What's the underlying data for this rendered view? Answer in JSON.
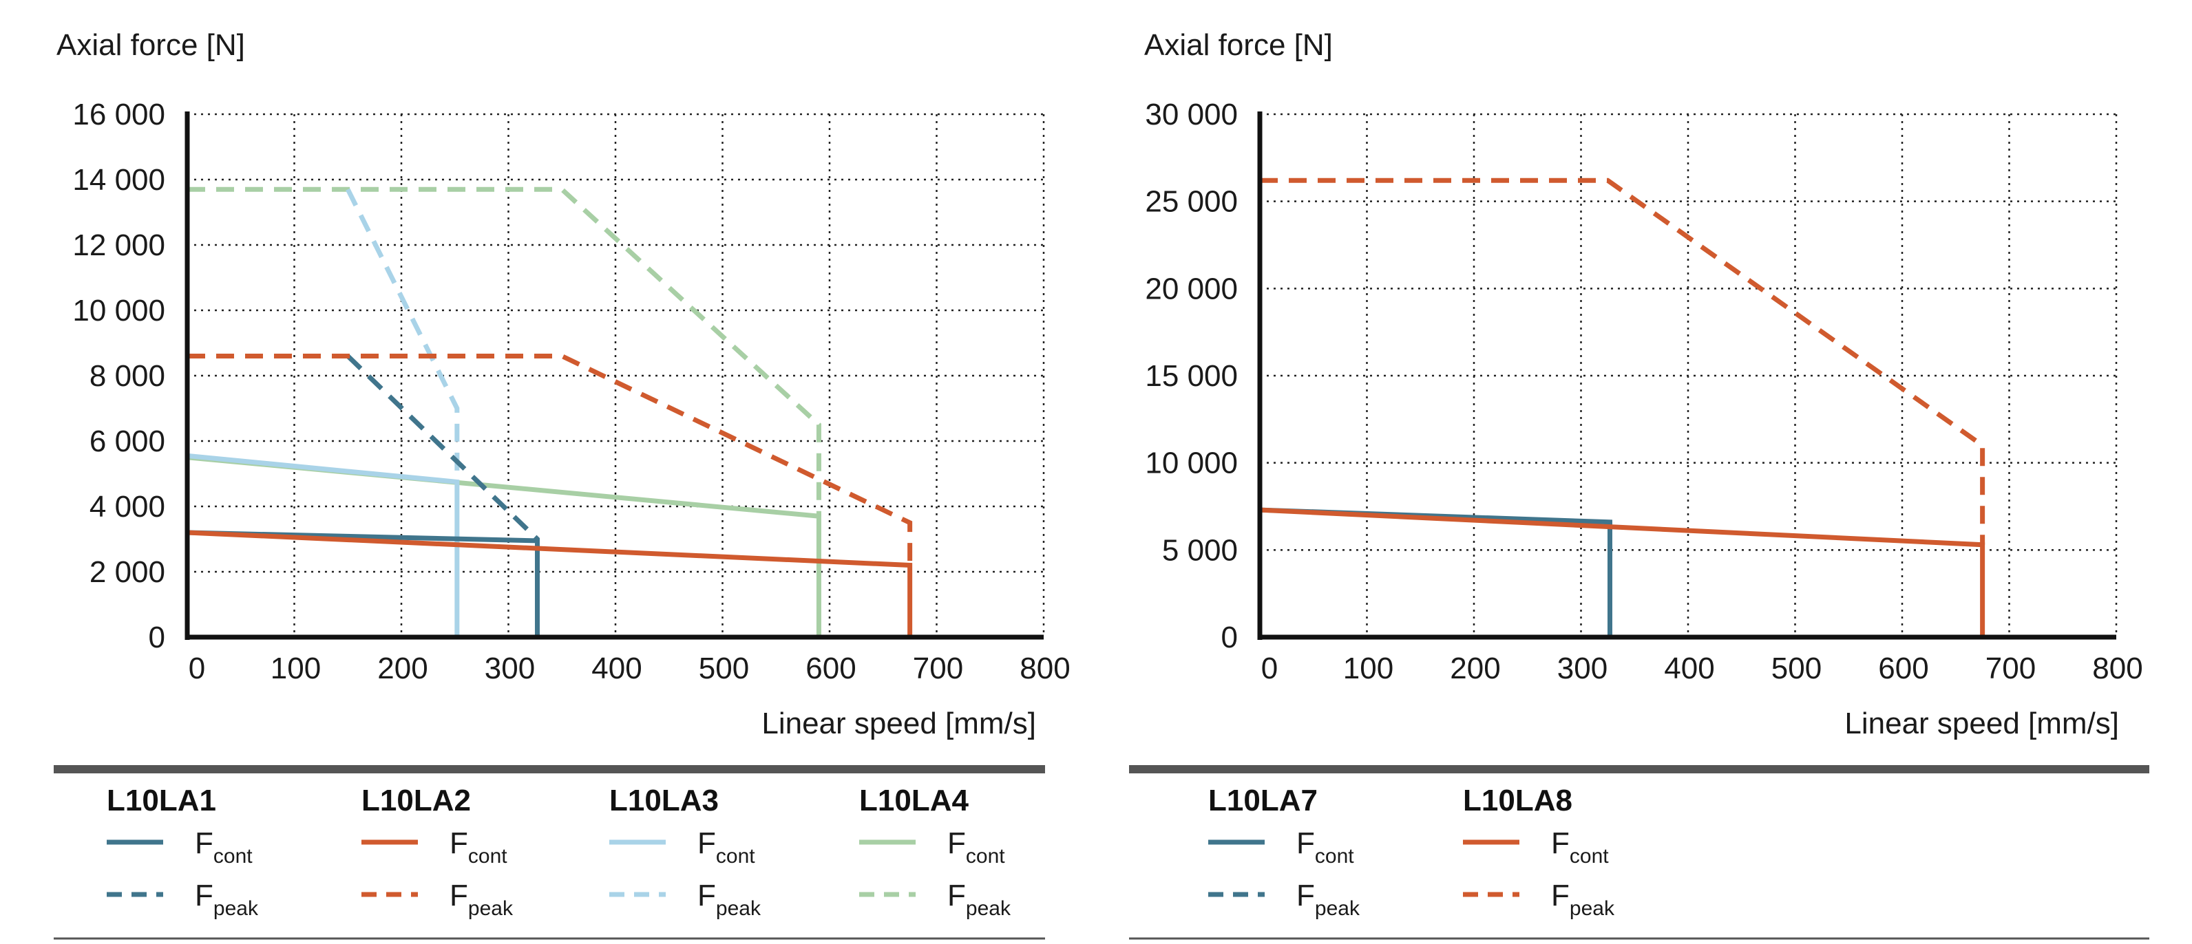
{
  "colors": {
    "L10LA1": "#40758c",
    "L10LA2": "#d05a2e",
    "L10LA3": "#a9d3e8",
    "L10LA4": "#a8cfa5",
    "L10LA7": "#40758c",
    "L10LA8": "#d05a2e",
    "axis": "#111111",
    "grid": "#222222",
    "rule": "#555555"
  },
  "chart_data": [
    {
      "type": "line",
      "ylabel": "Axial force [N]",
      "xlabel": "Linear speed [mm/s]",
      "xlim": [
        0,
        800
      ],
      "ylim": [
        0,
        16000
      ],
      "xticks": [
        0,
        100,
        200,
        300,
        400,
        500,
        600,
        700,
        800
      ],
      "xtick_labels": [
        "0",
        "100",
        "200",
        "300",
        "400",
        "500",
        "600",
        "700",
        "800"
      ],
      "yticks": [
        0,
        2000,
        4000,
        6000,
        8000,
        10000,
        12000,
        14000,
        16000
      ],
      "ytick_labels": [
        "0",
        "2 000",
        "4 000",
        "6 000",
        "8 000",
        "10 000",
        "12 000",
        "14 000",
        "16 000"
      ],
      "grid": true,
      "series": [
        {
          "model": "L10LA4",
          "kind": "cont",
          "dashed": false,
          "x": [
            0,
            590,
            590
          ],
          "y": [
            5500,
            3700,
            0
          ]
        },
        {
          "model": "L10LA4",
          "kind": "peak",
          "dashed": true,
          "x": [
            0,
            350,
            590,
            590
          ],
          "y": [
            13700,
            13700,
            6500,
            3700
          ]
        },
        {
          "model": "L10LA3",
          "kind": "cont",
          "dashed": false,
          "x": [
            0,
            252,
            252
          ],
          "y": [
            5550,
            4750,
            0
          ]
        },
        {
          "model": "L10LA3",
          "kind": "peak",
          "dashed": true,
          "x": [
            150,
            252,
            252
          ],
          "y": [
            13700,
            7000,
            4750
          ]
        },
        {
          "model": "L10LA1",
          "kind": "cont",
          "dashed": false,
          "x": [
            0,
            327,
            327
          ],
          "y": [
            3200,
            2950,
            0
          ]
        },
        {
          "model": "L10LA1",
          "kind": "peak",
          "dashed": true,
          "x": [
            150,
            327,
            327
          ],
          "y": [
            8600,
            3000,
            2950
          ]
        },
        {
          "model": "L10LA2",
          "kind": "cont",
          "dashed": false,
          "x": [
            0,
            675,
            675
          ],
          "y": [
            3200,
            2200,
            0
          ]
        },
        {
          "model": "L10LA2",
          "kind": "peak",
          "dashed": true,
          "x": [
            0,
            350,
            675,
            675
          ],
          "y": [
            8600,
            8600,
            3500,
            2200
          ]
        }
      ],
      "legend": [
        {
          "model": "L10LA1",
          "entries": [
            {
              "sym": "F",
              "sub": "cont",
              "dashed": false
            },
            {
              "sym": "F",
              "sub": "peak",
              "dashed": true
            }
          ]
        },
        {
          "model": "L10LA2",
          "entries": [
            {
              "sym": "F",
              "sub": "cont",
              "dashed": false
            },
            {
              "sym": "F",
              "sub": "peak",
              "dashed": true
            }
          ]
        },
        {
          "model": "L10LA3",
          "entries": [
            {
              "sym": "F",
              "sub": "cont",
              "dashed": false
            },
            {
              "sym": "F",
              "sub": "peak",
              "dashed": true
            }
          ]
        },
        {
          "model": "L10LA4",
          "entries": [
            {
              "sym": "F",
              "sub": "cont",
              "dashed": false
            },
            {
              "sym": "F",
              "sub": "peak",
              "dashed": true
            }
          ]
        }
      ]
    },
    {
      "type": "line",
      "ylabel": "Axial force [N]",
      "xlabel": "Linear speed [mm/s]",
      "xlim": [
        0,
        800
      ],
      "ylim": [
        0,
        30000
      ],
      "xticks": [
        0,
        100,
        200,
        300,
        400,
        500,
        600,
        700,
        800
      ],
      "xtick_labels": [
        "0",
        "100",
        "200",
        "300",
        "400",
        "500",
        "600",
        "700",
        "800"
      ],
      "yticks": [
        0,
        5000,
        10000,
        15000,
        20000,
        25000,
        30000
      ],
      "ytick_labels": [
        "0",
        "5 000",
        "10 000",
        "15 000",
        "20 000",
        "25 000",
        "30 000"
      ],
      "grid": true,
      "series": [
        {
          "model": "L10LA7",
          "kind": "cont",
          "dashed": false,
          "x": [
            0,
            327,
            327
          ],
          "y": [
            7300,
            6600,
            0
          ]
        },
        {
          "model": "L10LA8",
          "kind": "cont",
          "dashed": false,
          "x": [
            0,
            675,
            675
          ],
          "y": [
            7300,
            5300,
            0
          ]
        },
        {
          "model": "L10LA8",
          "kind": "peak",
          "dashed": true,
          "x": [
            0,
            325,
            675,
            675
          ],
          "y": [
            26200,
            26200,
            11000,
            5300
          ]
        }
      ],
      "legend": [
        {
          "model": "L10LA7",
          "entries": [
            {
              "sym": "F",
              "sub": "cont",
              "dashed": false
            },
            {
              "sym": "F",
              "sub": "peak",
              "dashed": true
            }
          ]
        },
        {
          "model": "L10LA8",
          "entries": [
            {
              "sym": "F",
              "sub": "cont",
              "dashed": false
            },
            {
              "sym": "F",
              "sub": "peak",
              "dashed": true
            }
          ]
        }
      ]
    }
  ]
}
